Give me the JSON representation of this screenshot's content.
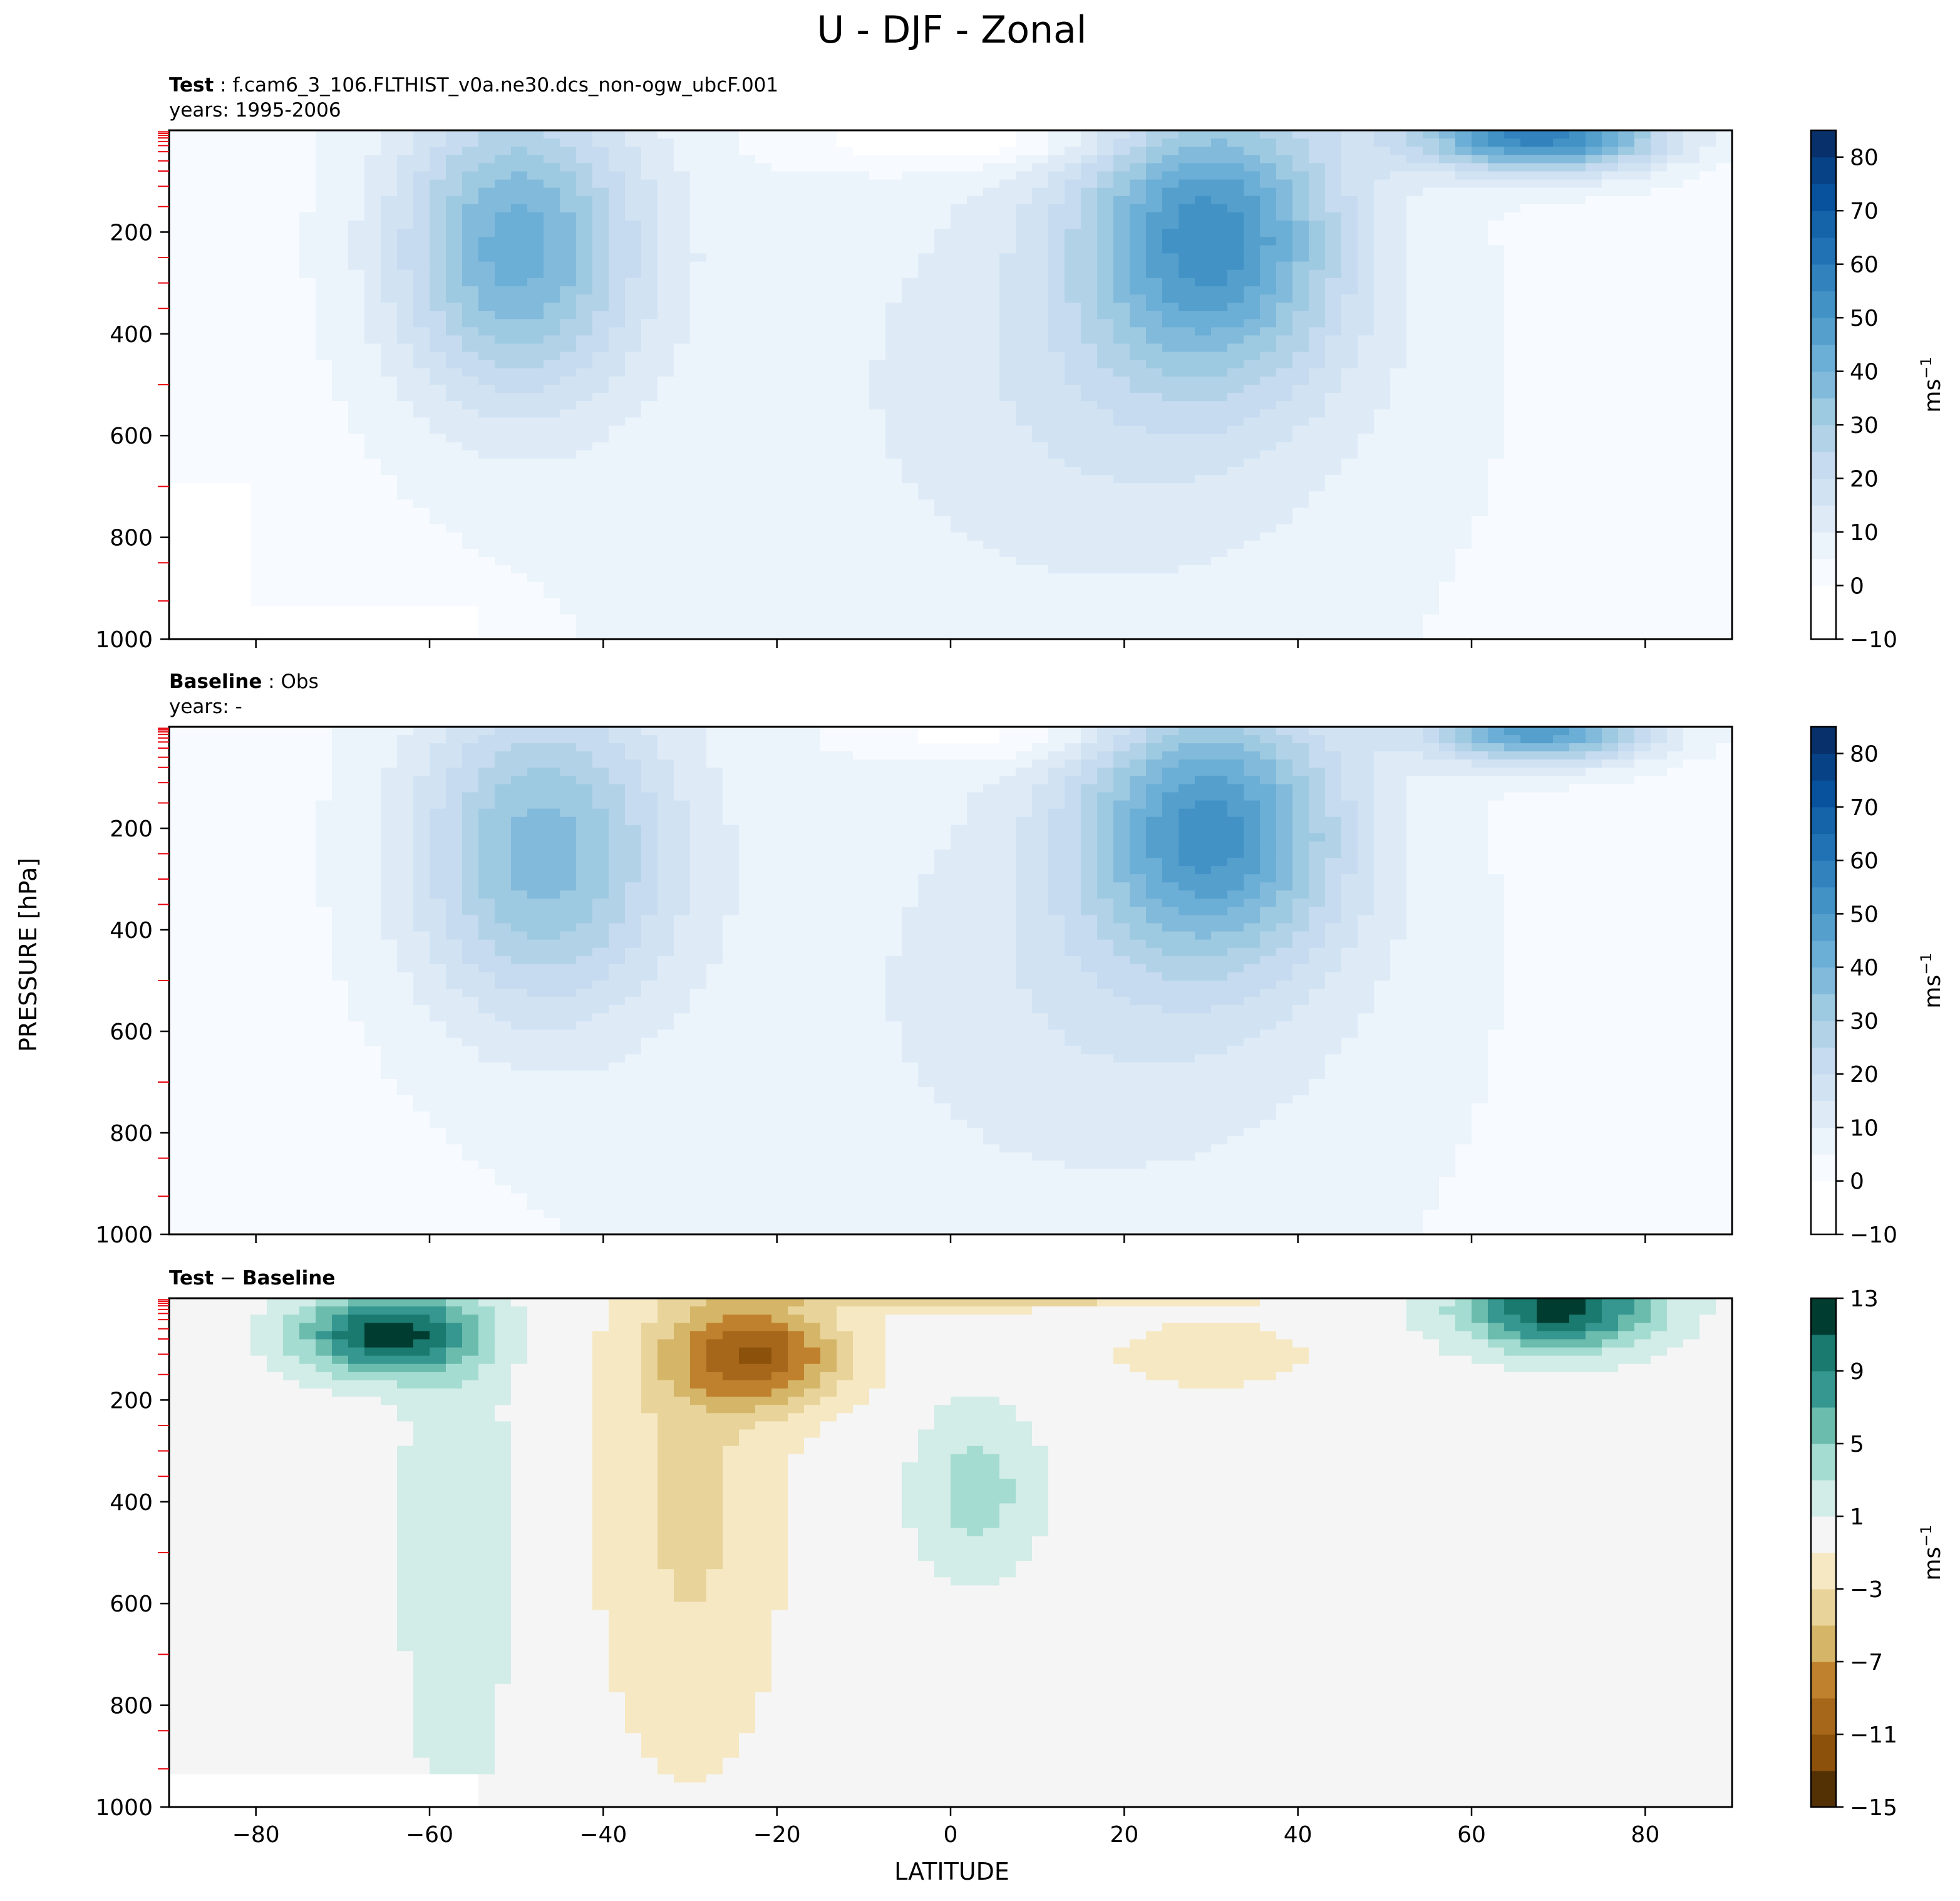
{
  "figure": {
    "title": "U - DJF - Zonal",
    "ylabel": "PRESSURE [hPa]",
    "xlabel": "LATITUDE"
  },
  "chart_data": [
    {
      "type": "heatmap",
      "panel": "test",
      "case_label": "Test",
      "case_name": "f.cam6_3_106.FLTHIST_v0a.ne30.dcs_non-ogw_ubcF.001",
      "years_text": "years: 1995-2006",
      "xlim": [
        -90,
        90
      ],
      "ylim": [
        1000,
        0
      ],
      "xticks": [
        -80,
        -60,
        -40,
        -20,
        0,
        20,
        40,
        60,
        80
      ],
      "yticks": [
        200,
        400,
        600,
        800,
        1000
      ],
      "colorbar": {
        "label": "ms",
        "label_exp": "−1",
        "ticks": [
          "80",
          "70",
          "60",
          "50",
          "40",
          "30",
          "20",
          "10",
          "0",
          "−10"
        ],
        "levels": [
          -10,
          0,
          5,
          10,
          15,
          20,
          25,
          30,
          35,
          40,
          45,
          50,
          55,
          60,
          65,
          70,
          75,
          80,
          85
        ],
        "colors": [
          "#ffffff",
          "#f7fbff",
          "#ebf3fb",
          "#deebf7",
          "#d1e3f3",
          "#c6dbef",
          "#b2d2e8",
          "#9ecae1",
          "#82badb",
          "#6baed6",
          "#559fcd",
          "#4292c6",
          "#3282be",
          "#2171b5",
          "#1563a9",
          "#08519c",
          "#084286",
          "#08306b"
        ]
      },
      "jets": [
        {
          "lat": -50,
          "p": 230,
          "max": 40
        },
        {
          "lat": 30,
          "p": 200,
          "max": 45
        },
        {
          "lat": 68,
          "p": 10,
          "max": 55
        }
      ]
    },
    {
      "type": "heatmap",
      "panel": "baseline",
      "case_label": "Baseline",
      "case_name": "Obs",
      "years_text": "years: -",
      "xlim": [
        -90,
        90
      ],
      "ylim": [
        1000,
        0
      ],
      "xticks": [
        -80,
        -60,
        -40,
        -20,
        0,
        20,
        40,
        60,
        80
      ],
      "yticks": [
        200,
        400,
        600,
        800,
        1000
      ],
      "colorbar": {
        "label": "ms",
        "label_exp": "−1",
        "ticks": [
          "80",
          "70",
          "60",
          "50",
          "40",
          "30",
          "20",
          "10",
          "0",
          "−10"
        ],
        "levels": [
          -10,
          0,
          5,
          10,
          15,
          20,
          25,
          30,
          35,
          40,
          45,
          50,
          55,
          60,
          65,
          70,
          75,
          80,
          85
        ],
        "colors": [
          "#ffffff",
          "#f7fbff",
          "#ebf3fb",
          "#deebf7",
          "#d1e3f3",
          "#c6dbef",
          "#b2d2e8",
          "#9ecae1",
          "#82badb",
          "#6baed6",
          "#559fcd",
          "#4292c6",
          "#3282be",
          "#2171b5",
          "#1563a9",
          "#08519c",
          "#084286",
          "#08306b"
        ]
      },
      "jets": [
        {
          "lat": -47,
          "p": 250,
          "max": 35
        },
        {
          "lat": 30,
          "p": 200,
          "max": 45
        },
        {
          "lat": 68,
          "p": 10,
          "max": 45
        }
      ]
    },
    {
      "type": "heatmap",
      "panel": "difference",
      "case_label": "Test",
      "case_label_2": "Baseline",
      "xlim": [
        -90,
        90
      ],
      "ylim": [
        1000,
        0
      ],
      "xticks": [
        -80,
        -60,
        -40,
        -20,
        0,
        20,
        40,
        60,
        80
      ],
      "yticks": [
        200,
        400,
        600,
        800,
        1000
      ],
      "colorbar": {
        "label": "ms",
        "label_exp": "−1",
        "ticks": [
          "13",
          "9",
          "5",
          "1",
          "−3",
          "−7",
          "−11",
          "−15"
        ],
        "levels": [
          -15,
          -13,
          -11,
          -9,
          -7,
          -5,
          -3,
          -1,
          1,
          3,
          5,
          7,
          9,
          11,
          13
        ],
        "colors": [
          "#543005",
          "#8c510a",
          "#a6671b",
          "#bf812d",
          "#d5b567",
          "#e8d49a",
          "#f6e8c3",
          "#f5f5f5",
          "#d2ece7",
          "#a5dcd1",
          "#6cbcae",
          "#35978f",
          "#1a7a6f",
          "#003c30"
        ]
      },
      "features": [
        {
          "lat": -65,
          "p": 70,
          "diff": 12
        },
        {
          "lat": -22,
          "p": 110,
          "diff": -10
        },
        {
          "lat": 3,
          "p": 380,
          "diff": 4
        },
        {
          "lat": 70,
          "p": 20,
          "diff": 12
        }
      ]
    }
  ]
}
